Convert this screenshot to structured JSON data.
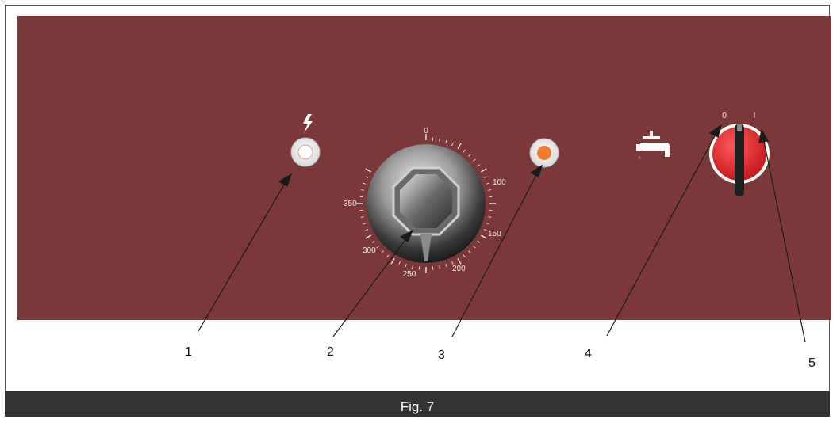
{
  "diagram": {
    "dial_scale": [
      "0",
      "100",
      "150",
      "200",
      "250",
      "300",
      "350"
    ],
    "switch_positions": {
      "off": "0",
      "on": "I"
    },
    "callouts": [
      "1",
      "2",
      "3",
      "4",
      "5"
    ],
    "icons": [
      "lightning-icon",
      "water-tap-icon"
    ],
    "colors": {
      "panel": "#7b3838",
      "indicator_lamp": "#f07c2a",
      "switch": "#e8262a",
      "caption_bar": "#333333"
    }
  },
  "caption": "Fig. 7"
}
